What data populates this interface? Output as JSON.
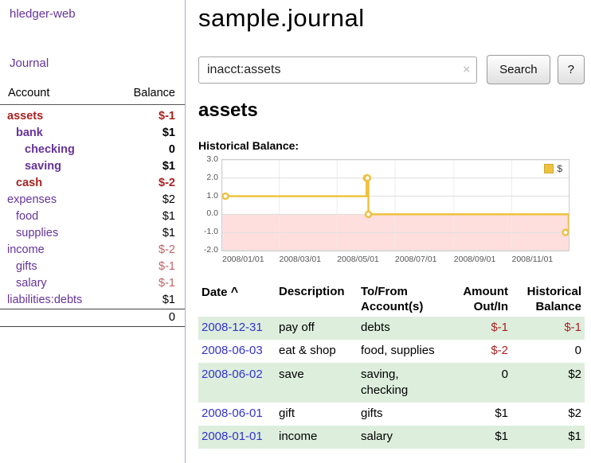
{
  "app": {
    "title": "hledger-web"
  },
  "sidebar": {
    "journal_link": "Journal",
    "accounts_table": {
      "col_account": "Account",
      "col_balance": "Balance",
      "rows": [
        {
          "name": "assets",
          "balance": "$-1",
          "indent": 0,
          "bold": true,
          "name_negative": true
        },
        {
          "name": "bank",
          "balance": "$1",
          "indent": 1,
          "bold": true,
          "name_negative": false
        },
        {
          "name": "checking",
          "balance": "0",
          "indent": 2,
          "bold": true,
          "name_negative": false
        },
        {
          "name": "saving",
          "balance": "$1",
          "indent": 2,
          "bold": true,
          "name_negative": false
        },
        {
          "name": "cash",
          "balance": "$-2",
          "indent": 1,
          "bold": true,
          "name_negative": true
        },
        {
          "name": "expenses",
          "balance": "$2",
          "indent": 0,
          "bold": false,
          "name_negative": false
        },
        {
          "name": "food",
          "balance": "$1",
          "indent": 1,
          "bold": false,
          "name_negative": false
        },
        {
          "name": "supplies",
          "balance": "$1",
          "indent": 1,
          "bold": false,
          "name_negative": false
        },
        {
          "name": "income",
          "balance": "$-2",
          "indent": 0,
          "bold": false,
          "name_negative": false
        },
        {
          "name": "gifts",
          "balance": "$-1",
          "indent": 1,
          "bold": false,
          "name_negative": false
        },
        {
          "name": "salary",
          "balance": "$-1",
          "indent": 1,
          "bold": false,
          "name_negative": false
        },
        {
          "name": "liabilities:debts",
          "balance": "$1",
          "indent": 0,
          "bold": false,
          "name_negative": false
        }
      ],
      "total": "0"
    }
  },
  "header": {
    "title": "sample.journal"
  },
  "search": {
    "value": "inacct:assets",
    "clear_icon": "×",
    "button_label": "Search",
    "help_label": "?"
  },
  "account_page": {
    "title": "assets",
    "chart_heading": "Historical Balance:"
  },
  "chart_data": {
    "type": "line",
    "title": "Historical Balance",
    "legend_position": "top-right",
    "grid": true,
    "ylim": [
      -2,
      3
    ],
    "x_start": "2008-01-01",
    "x_end": "2008-12-31",
    "y_ticks": [
      "3.0",
      "2.0",
      "1.0",
      "0.0",
      "-1.0",
      "-2.0"
    ],
    "x_ticks": [
      "2008/01/01",
      "2008/03/01",
      "2008/05/01",
      "2008/07/01",
      "2008/09/01",
      "2008/11/01"
    ],
    "series": [
      {
        "name": "$",
        "points": [
          [
            "2008-01-01",
            1
          ],
          [
            "2008-06-01",
            2
          ],
          [
            "2008-06-02",
            2
          ],
          [
            "2008-06-03",
            0
          ],
          [
            "2008-12-31",
            -1
          ]
        ]
      }
    ],
    "line_color": "#edc240",
    "negative_region_color": "#ffdede"
  },
  "register": {
    "sort_icon": "^",
    "columns": [
      {
        "label": "Date"
      },
      {
        "label": "Description"
      },
      {
        "label": "To/From Account(s)"
      },
      {
        "label": "Amount Out/In"
      },
      {
        "label": "Historical Balance"
      }
    ],
    "rows": [
      {
        "date": "2008-12-31",
        "description": "pay off",
        "accounts": [
          "debts"
        ],
        "amount": "$-1",
        "balance": "$-1",
        "shaded": true
      },
      {
        "date": "2008-06-03",
        "description": "eat & shop",
        "accounts": [
          "food",
          "supplies"
        ],
        "amount": "$-2",
        "balance": "0",
        "shaded": false
      },
      {
        "date": "2008-06-02",
        "description": "save",
        "accounts": [
          "saving",
          "checking"
        ],
        "amount": "0",
        "balance": "$2",
        "shaded": true
      },
      {
        "date": "2008-06-01",
        "description": "gift",
        "accounts": [
          "gifts"
        ],
        "amount": "$1",
        "balance": "$2",
        "shaded": false
      },
      {
        "date": "2008-01-01",
        "description": "income",
        "accounts": [
          "salary"
        ],
        "amount": "$1",
        "balance": "$1",
        "shaded": true
      }
    ]
  },
  "colors": {
    "accent_purple": "#663399",
    "link_blue": "#3333cc",
    "negative_red": "#aa2222",
    "negative_red_soft": "#bb6666",
    "row_shade_green": "#ddeedd",
    "chart_line": "#edc240",
    "chart_negative_fill": "#ffdede"
  }
}
